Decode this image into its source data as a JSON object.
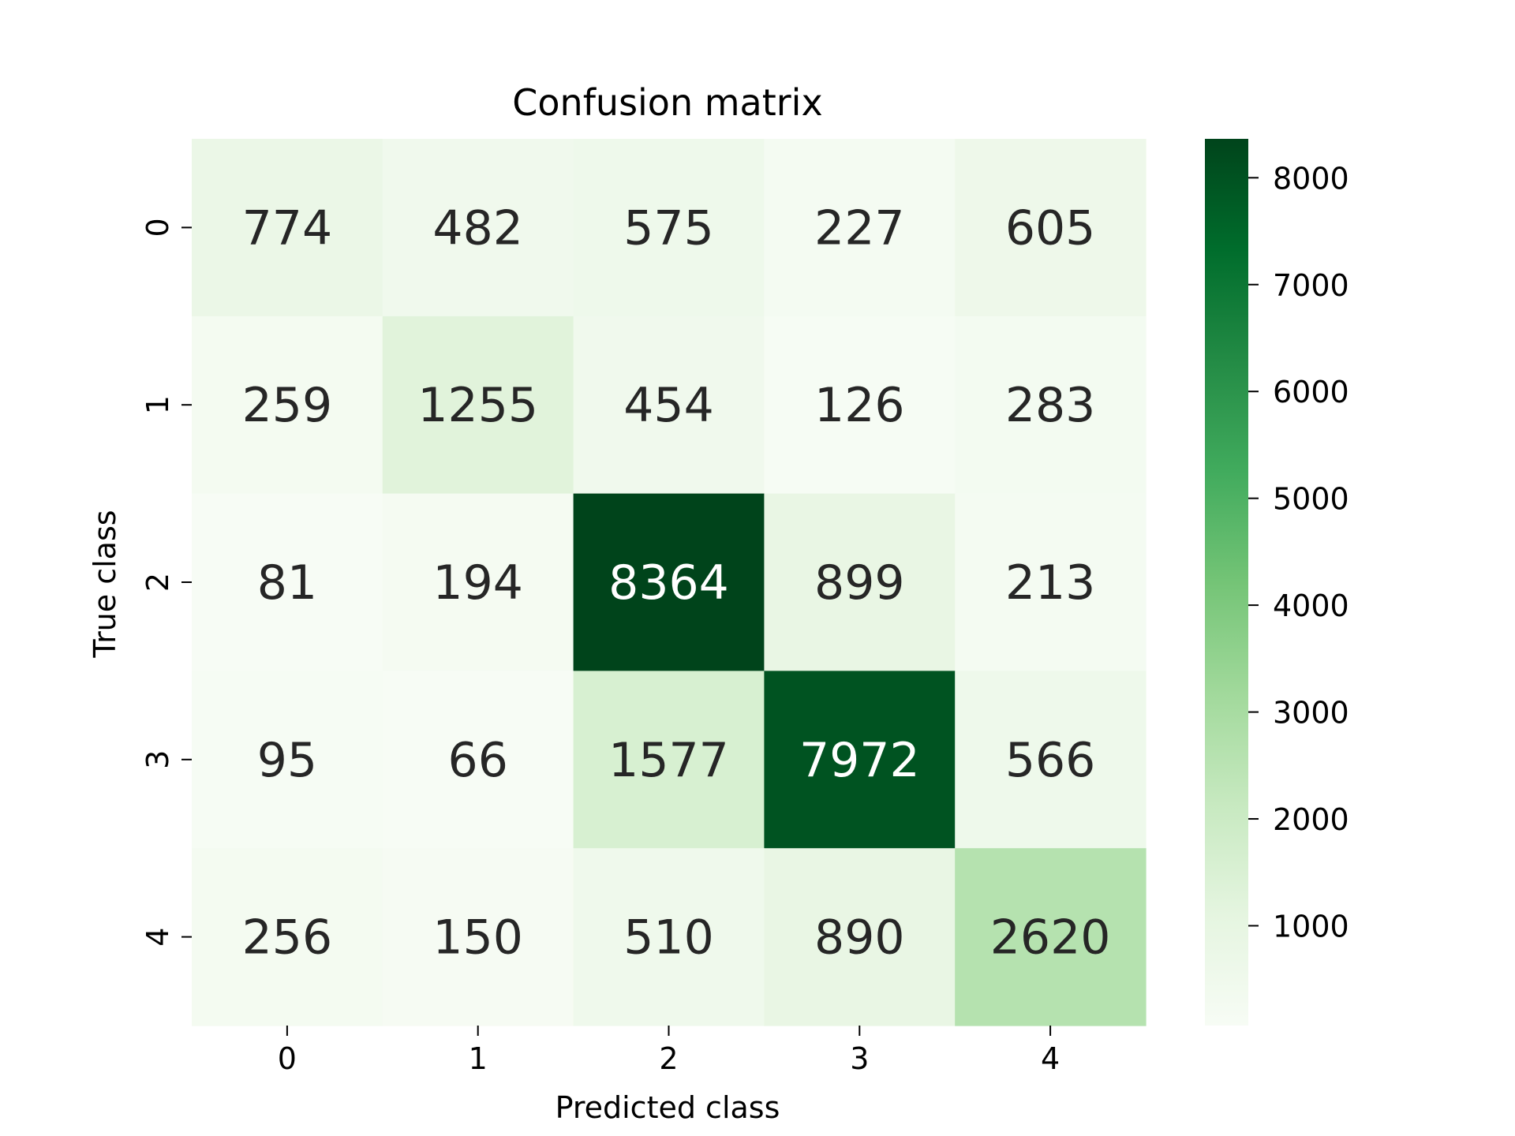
{
  "chart_data": {
    "type": "heatmap",
    "title": "Confusion matrix",
    "xlabel": "Predicted class",
    "ylabel": "True class",
    "x_categories": [
      "0",
      "1",
      "2",
      "3",
      "4"
    ],
    "y_categories": [
      "0",
      "1",
      "2",
      "3",
      "4"
    ],
    "values": [
      [
        774,
        482,
        575,
        227,
        605
      ],
      [
        259,
        1255,
        454,
        126,
        283
      ],
      [
        81,
        194,
        8364,
        899,
        213
      ],
      [
        95,
        66,
        1577,
        7972,
        566
      ],
      [
        256,
        150,
        510,
        890,
        2620
      ]
    ],
    "colorbar": {
      "min": 66,
      "max": 8364,
      "ticks": [
        1000,
        2000,
        3000,
        4000,
        5000,
        6000,
        7000,
        8000
      ]
    },
    "colormap": "Greens",
    "colors": {
      "low": "#f7fcf5",
      "high": "#00441b",
      "text_dark": "#262626",
      "text_light": "#ffffff"
    },
    "grid": false
  }
}
